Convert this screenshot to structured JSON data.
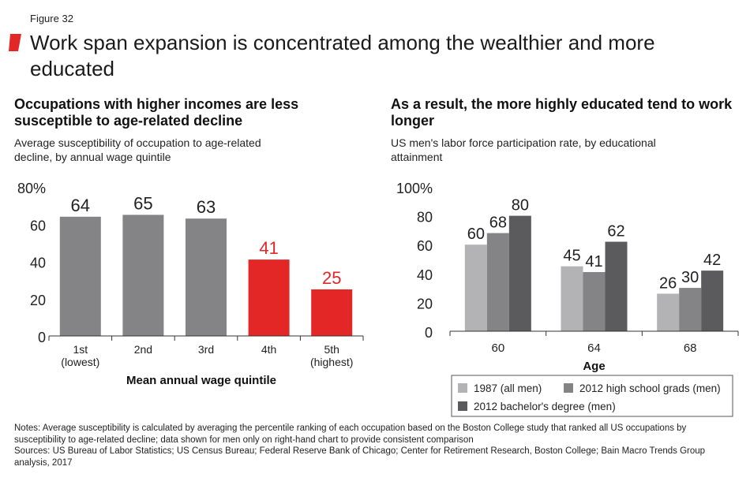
{
  "figure_label": "Figure 32",
  "title": "Work span expansion is concentrated among the wealthier and more educated",
  "colors": {
    "accent_red": "#e32727",
    "gray_light": "#b3b3b5",
    "gray_mid": "#848487",
    "gray_dark": "#5b5b5e"
  },
  "left": {
    "title": "Occupations with higher incomes are less susceptible to age-related decline",
    "subtitle": "Average susceptibility of occupation to age-related decline, by annual wage quintile"
  },
  "right": {
    "title": "As a result, the more highly educated tend to work longer",
    "subtitle": "US men's labor force participation rate, by educational attainment"
  },
  "chart_data": [
    {
      "type": "bar",
      "categories": [
        "1st\n(lowest)",
        "2nd",
        "3rd",
        "4th",
        "5th\n(highest)"
      ],
      "values": [
        64,
        65,
        63,
        41,
        25
      ],
      "value_labels": [
        "64",
        "65",
        "63",
        "41",
        "25"
      ],
      "bar_colors": [
        "#848487",
        "#848487",
        "#848487",
        "#e32727",
        "#e32727"
      ],
      "ylim": [
        0,
        80
      ],
      "yticks": [
        0,
        20,
        40,
        60,
        80
      ],
      "ytick_labels": [
        "0",
        "20",
        "40",
        "60",
        "80%"
      ],
      "xlabel": "Mean annual wage quintile",
      "ylabel": "",
      "grid": false
    },
    {
      "type": "bar",
      "categories": [
        "60",
        "64",
        "68"
      ],
      "series": [
        {
          "name": "1987 (all men)",
          "values": [
            60,
            45,
            26
          ],
          "color": "#b3b3b5"
        },
        {
          "name": "2012 high school grads (men)",
          "values": [
            68,
            41,
            30
          ],
          "color": "#848487"
        },
        {
          "name": "2012 bachelor's degree (men)",
          "values": [
            80,
            62,
            42
          ],
          "color": "#5b5b5e"
        }
      ],
      "ylim": [
        0,
        100
      ],
      "yticks": [
        0,
        20,
        40,
        60,
        80,
        100
      ],
      "ytick_labels": [
        "0",
        "20",
        "40",
        "60",
        "80",
        "100%"
      ],
      "xlabel": "Age",
      "ylabel": "",
      "legend_position": "bottom-right",
      "grid": false
    }
  ],
  "notes": "Notes: Average susceptibility is calculated by averaging the percentile ranking of each occupation based on the Boston College study that ranked all US occupations by susceptibility to age-related decline; data shown for men only on right-hand chart to provide consistent comparison",
  "sources": "Sources: US Bureau of Labor Statistics; US Census Bureau; Federal Reserve Bank of Chicago; Center for Retirement Research, Boston College; Bain Macro Trends Group analysis, 2017"
}
